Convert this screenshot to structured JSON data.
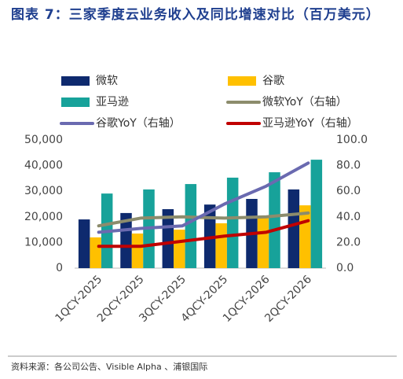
{
  "chart_data": {
    "type": "bar",
    "title": "图表 7：三家季度云业务收入及同比增速对比（百万美元）",
    "source": "资料来源：各公司公告、Visible Alpha 、浦银国际",
    "categories": [
      "1QCY-2025",
      "2QCY-2025",
      "3QCY-2025",
      "4QCY-2025",
      "1QCY-2026",
      "2QCY-2026"
    ],
    "series": [
      {
        "name": "微软",
        "type": "bar",
        "color": "#0e2a6e",
        "values": [
          19000,
          21500,
          23000,
          24800,
          27000,
          30700
        ]
      },
      {
        "name": "谷歌",
        "type": "bar",
        "color": "#ffc000",
        "values": [
          12000,
          13500,
          15000,
          17500,
          20000,
          24500
        ]
      },
      {
        "name": "亚马逊",
        "type": "bar",
        "color": "#17a29a",
        "values": [
          29100,
          30700,
          32800,
          35300,
          37400,
          42300
        ]
      },
      {
        "name": "微软YoY（右轴）",
        "type": "line",
        "axis": "y2",
        "color": "#8c8c6c",
        "values": [
          33,
          39,
          40,
          39,
          40,
          43
        ]
      },
      {
        "name": "谷歌YoY（右轴）",
        "type": "line",
        "axis": "y2",
        "color": "#6a6ab0",
        "values": [
          28,
          31,
          33,
          50,
          64,
          82
        ]
      },
      {
        "name": "亚马逊YoY（右轴）",
        "type": "line",
        "axis": "y2",
        "color": "#c00000",
        "values": [
          17,
          17,
          21,
          25,
          28,
          37
        ]
      }
    ],
    "ylim": [
      0,
      50000
    ],
    "yticks": [
      0,
      {
        "value": 10000,
        "label": "10,000"
      },
      {
        "value": 20000,
        "label": "20,000"
      },
      {
        "value": 30000,
        "label": "30,000"
      },
      {
        "value": 40000,
        "label": "40,000"
      },
      {
        "value": 50000,
        "label": "50,000"
      }
    ],
    "y2lim": [
      0,
      100
    ],
    "y2ticks": [
      {
        "value": 0,
        "label": "0.0"
      },
      {
        "value": 20,
        "label": "20.0"
      },
      {
        "value": 40,
        "label": "40.0"
      },
      {
        "value": 60,
        "label": "60.0"
      },
      {
        "value": 80,
        "label": "80.0"
      },
      {
        "value": 100,
        "label": "100.0"
      }
    ],
    "grid": false
  }
}
